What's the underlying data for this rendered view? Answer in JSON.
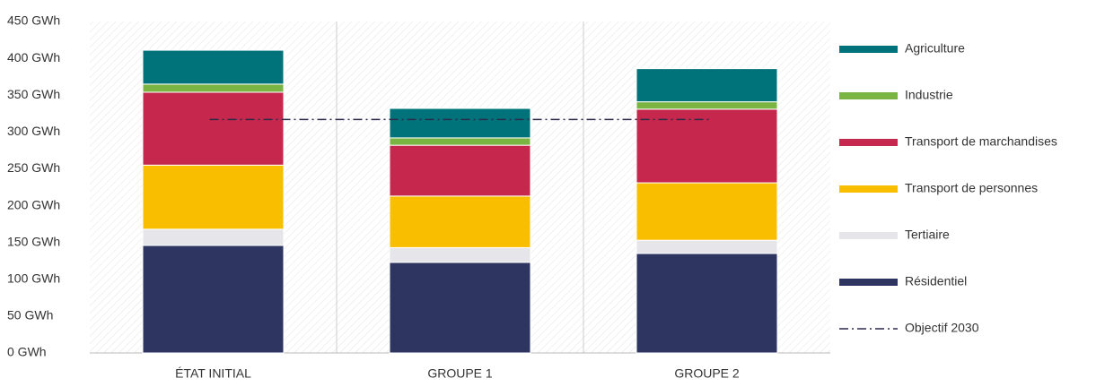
{
  "chart_data": {
    "type": "stacked-bar",
    "categories": [
      "ÉTAT INITIAL",
      "GROUPE 1",
      "GROUPE 2"
    ],
    "series": [
      {
        "name": "Résidentiel",
        "color": "#2e3561",
        "values": [
          146,
          123,
          135
        ]
      },
      {
        "name": "Tertiaire",
        "color": "#e6e6ea",
        "values": [
          22,
          20,
          18
        ]
      },
      {
        "name": "Transport de personnes",
        "color": "#f9be00",
        "values": [
          87,
          70,
          78
        ]
      },
      {
        "name": "Transport de marchandises",
        "color": "#c6284d",
        "values": [
          99,
          69,
          100
        ]
      },
      {
        "name": "Industrie",
        "color": "#7ab543",
        "values": [
          11,
          10,
          10
        ]
      },
      {
        "name": "Agriculture",
        "color": "#00737a",
        "values": [
          46,
          40,
          45
        ]
      }
    ],
    "objective": {
      "name": "Objectif 2030",
      "value": 317,
      "color": "#2c2a4a"
    },
    "ylim": [
      0,
      450
    ],
    "yticks": [
      {
        "value": 0,
        "label": "0 GWh"
      },
      {
        "value": 50,
        "label": "50 GWh"
      },
      {
        "value": 100,
        "label": "100 GWh"
      },
      {
        "value": 150,
        "label": "150 GWh"
      },
      {
        "value": 200,
        "label": "200 GWh"
      },
      {
        "value": 250,
        "label": "250 GWh"
      },
      {
        "value": 300,
        "label": "300 GWh"
      },
      {
        "value": 350,
        "label": "350 GWh"
      },
      {
        "value": 400,
        "label": "400 GWh"
      },
      {
        "value": 450,
        "label": "450 GWh"
      }
    ],
    "legend": "right"
  }
}
